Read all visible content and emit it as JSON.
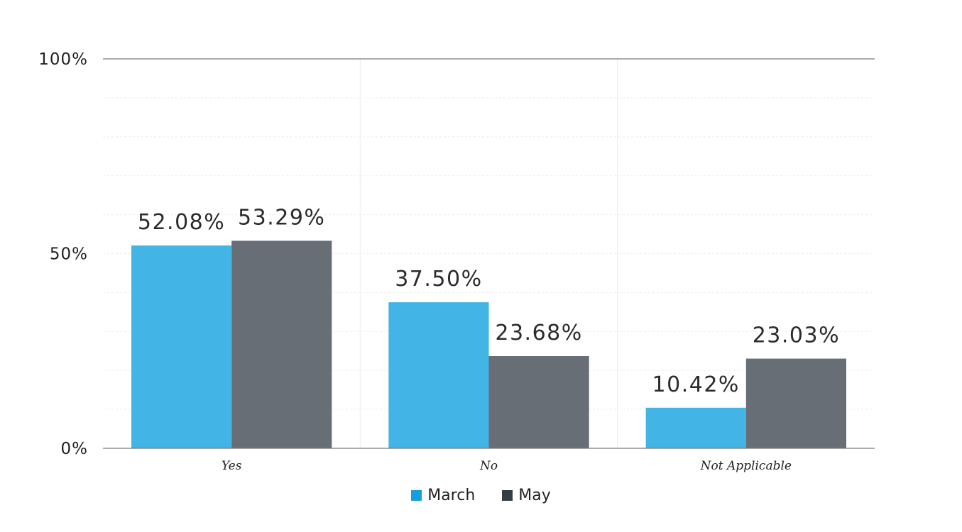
{
  "chart_data": {
    "type": "bar",
    "categories": [
      "Yes",
      "No",
      "Not Applicable"
    ],
    "series": [
      {
        "name": "March",
        "values": [
          52.08,
          37.5,
          10.42
        ],
        "labels": [
          "52.08%",
          "37.50%",
          "10.42%"
        ],
        "color": "#42b4e5",
        "legend_color": "#149fde"
      },
      {
        "name": "May",
        "values": [
          53.29,
          23.68,
          23.03
        ],
        "labels": [
          "53.29%",
          "23.68%",
          "23.03%"
        ],
        "color": "#676e76",
        "legend_color": "#343d46"
      }
    ],
    "yticks": [
      {
        "value": 0,
        "label": "0%"
      },
      {
        "value": 50,
        "label": "50%"
      },
      {
        "value": 100,
        "label": "100%"
      }
    ],
    "ylim": [
      0,
      100
    ],
    "title": "",
    "xlabel": "",
    "ylabel": "",
    "grid": true,
    "legend_position": "bottom-center"
  }
}
